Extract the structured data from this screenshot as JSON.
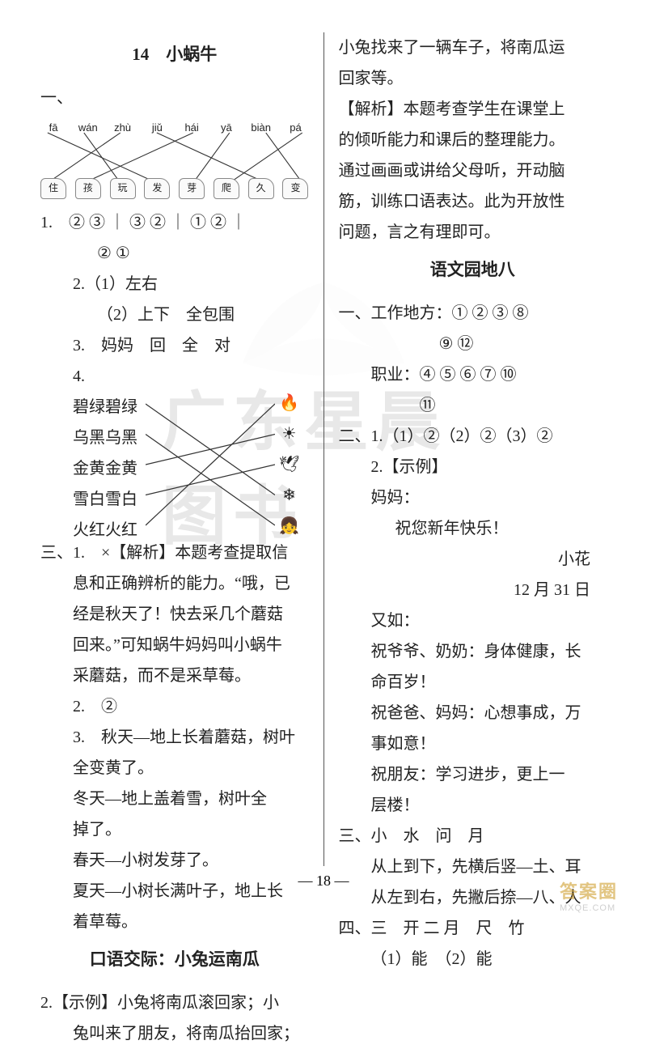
{
  "watermark_text": "广东星晨图书",
  "left": {
    "title": "14　小蜗牛",
    "snails": {
      "pinyin": [
        "fā",
        "wán",
        "zhù",
        "jiǔ",
        "hái",
        "yā",
        "biàn",
        "pá"
      ],
      "chars": [
        "住",
        "孩",
        "玩",
        "发",
        "芽",
        "爬",
        "久",
        "变"
      ],
      "cross_lines": [
        [
          0,
          3
        ],
        [
          1,
          2
        ],
        [
          2,
          0
        ],
        [
          3,
          6
        ],
        [
          4,
          1
        ],
        [
          5,
          4
        ],
        [
          6,
          7
        ],
        [
          7,
          5
        ]
      ]
    },
    "two": {
      "row1": "1.　② ③ ｜ ③ ② ｜ ① ② ｜",
      "row1b": "② ①",
      "row2a": "2.（1）左右",
      "row2b": "（2）上下　全包围",
      "row3": "3.　妈妈　回　全　对",
      "row4": "4.",
      "match_words": [
        "碧绿碧绿",
        "乌黑乌黑",
        "金黄金黄",
        "雪白雪白",
        "火红火红"
      ],
      "match_icons": [
        "🔥",
        "☀",
        "🕊",
        "❄",
        "👧"
      ],
      "match_lines": [
        [
          0,
          3
        ],
        [
          1,
          4
        ],
        [
          2,
          1
        ],
        [
          3,
          2
        ],
        [
          4,
          0
        ]
      ]
    },
    "three": {
      "l1": "三、1.　×【解析】本题考查提取信",
      "l2": "息和正确辨析的能力。“哦，已",
      "l3": "经是秋天了！快去采几个蘑菇",
      "l4": "回来。”可知蜗牛妈妈叫小蜗牛",
      "l5": "采蘑菇，而不是采草莓。",
      "l6": "2.　②",
      "l7": "3.　秋天—地上长着蘑菇，树叶",
      "l7b": "全变黄了。",
      "l8": "冬天—地上盖着雪，树叶全",
      "l8b": "掉了。",
      "l9": "春天—小树发芽了。",
      "l10": "夏天—小树长满叶子，地上长",
      "l10b": "着草莓。"
    },
    "kouyu_title": "口语交际：小兔运南瓜",
    "kouyu": {
      "l1": "2.【示例】小兔将南瓜滚回家；小",
      "l2": "兔叫来了朋友，将南瓜抬回家；"
    }
  },
  "right": {
    "cont1": "小兔找来了一辆车子，将南瓜运",
    "cont2": "回家等。",
    "ana1": "【解析】本题考查学生在课堂上",
    "ana2": "的倾听能力和课后的整理能力。",
    "ana3": "通过画画或讲给父母听，开动脑",
    "ana4": "筋，训练口语表达。此为开放性",
    "ana5": "问题，言之有理即可。",
    "title2": "语文园地八",
    "one": {
      "l1": "一、工作地方：① ② ③ ⑧",
      "l1b": "⑨ ⑫",
      "l2": "职业：④ ⑤ ⑥ ⑦ ⑩",
      "l2b": "⑪"
    },
    "two": {
      "l1": "二、1.（1）②（2）②（3）②",
      "l2": "2.【示例】",
      "l3": "妈妈：",
      "l4": "祝您新年快乐！",
      "sig1": "小花",
      "sig2": "12 月 31 日",
      "l5": "又如：",
      "l6": "祝爷爷、奶奶：身体健康，长",
      "l6b": "命百岁！",
      "l7": "祝爸爸、妈妈：心想事成，万",
      "l7b": "事如意！",
      "l8": "祝朋友：学习进步，更上一",
      "l8b": "层楼！"
    },
    "three": {
      "l1": "三、小　水　问　月",
      "l2": "从上到下，先横后竖—土、耳",
      "l3": "从左到右，先撇后捺—八、人"
    },
    "four": {
      "l1": "四、三　开 二 月　尺　竹",
      "l2": "（1）能　（2）能"
    }
  },
  "page_number": "— 18 —",
  "corner": {
    "line1": "答案圈",
    "line2": "MXQE.COM"
  },
  "colors": {
    "text": "#222222",
    "watermark": "#e8e8e8",
    "divider": "#555555",
    "line": "#333333"
  }
}
